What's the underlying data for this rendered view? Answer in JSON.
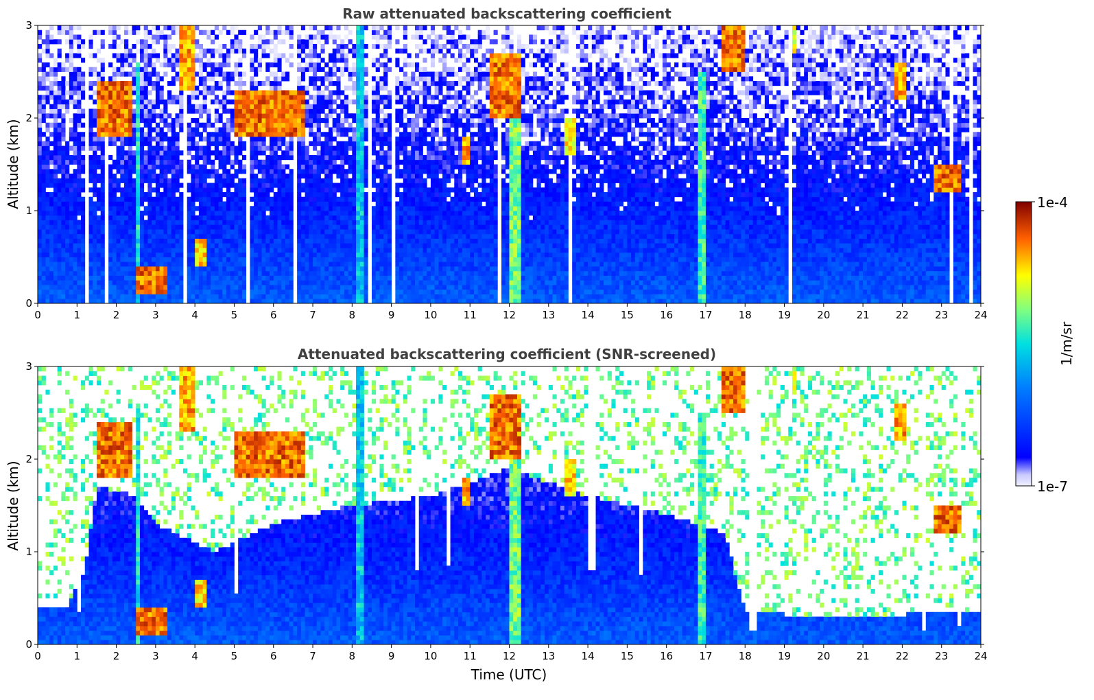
{
  "chart_data": [
    {
      "type": "heatmap",
      "title": "Raw attenuated backscattering coefficient",
      "xlabel": "",
      "ylabel": "Altitude (km)",
      "xlim": [
        0,
        24
      ],
      "ylim": [
        0,
        3
      ],
      "x_ticks": [
        0,
        1,
        2,
        3,
        4,
        5,
        6,
        7,
        8,
        9,
        10,
        11,
        12,
        13,
        14,
        15,
        16,
        17,
        18,
        19,
        20,
        21,
        22,
        23,
        24
      ],
      "y_ticks": [
        0,
        1,
        2,
        3
      ],
      "background_profile": [
        {
          "alt_km": 0.0,
          "level": 0.28
        },
        {
          "alt_km": 0.8,
          "level": 0.18
        },
        {
          "alt_km": 1.5,
          "level": 0.12
        },
        {
          "alt_km": 3.0,
          "level": 0.05
        }
      ],
      "features": [
        {
          "t": [
            1.5,
            2.4
          ],
          "alt": [
            1.8,
            2.4
          ],
          "level": 0.95,
          "label": "cloud"
        },
        {
          "t": [
            2.5,
            2.6
          ],
          "alt": [
            0.0,
            2.6
          ],
          "level": 0.6,
          "label": "precipitation column"
        },
        {
          "t": [
            2.5,
            3.3
          ],
          "alt": [
            0.1,
            0.4
          ],
          "level": 0.95,
          "label": "low cloud"
        },
        {
          "t": [
            3.6,
            4.0
          ],
          "alt": [
            2.3,
            3.0
          ],
          "level": 0.9,
          "label": "cloud"
        },
        {
          "t": [
            4.0,
            4.3
          ],
          "alt": [
            0.4,
            0.7
          ],
          "level": 0.85,
          "label": "low cloud"
        },
        {
          "t": [
            5.0,
            6.8
          ],
          "alt": [
            1.8,
            2.3
          ],
          "level": 0.95,
          "label": "cloud"
        },
        {
          "t": [
            8.1,
            8.3
          ],
          "alt": [
            0.0,
            3.0
          ],
          "level": 0.55,
          "label": "precipitation column"
        },
        {
          "t": [
            10.8,
            11.0
          ],
          "alt": [
            1.5,
            1.8
          ],
          "level": 0.9,
          "label": "cloud"
        },
        {
          "t": [
            11.5,
            12.3
          ],
          "alt": [
            2.0,
            2.7
          ],
          "level": 0.95,
          "label": "cloud"
        },
        {
          "t": [
            12.0,
            12.3
          ],
          "alt": [
            0.0,
            2.7
          ],
          "level": 0.7,
          "label": "precipitation column"
        },
        {
          "t": [
            13.4,
            13.7
          ],
          "alt": [
            1.6,
            2.0
          ],
          "level": 0.85,
          "label": "cloud"
        },
        {
          "t": [
            16.8,
            17.0
          ],
          "alt": [
            0.0,
            2.5
          ],
          "level": 0.65,
          "label": "precipitation column"
        },
        {
          "t": [
            17.4,
            18.0
          ],
          "alt": [
            2.5,
            3.0
          ],
          "level": 0.95,
          "label": "cloud"
        },
        {
          "t": [
            19.2,
            19.3
          ],
          "alt": [
            2.7,
            3.0
          ],
          "level": 0.8,
          "label": "cloud"
        },
        {
          "t": [
            21.8,
            22.1
          ],
          "alt": [
            2.2,
            2.6
          ],
          "level": 0.9,
          "label": "cloud"
        },
        {
          "t": [
            22.8,
            23.5
          ],
          "alt": [
            1.2,
            1.5
          ],
          "level": 0.95,
          "label": "cloud"
        }
      ]
    },
    {
      "type": "heatmap",
      "title": "Attenuated backscattering coefficient (SNR-screened)",
      "xlabel": "Time (UTC)",
      "ylabel": "Altitude (km)",
      "xlim": [
        0,
        24
      ],
      "ylim": [
        0,
        3
      ],
      "x_ticks": [
        0,
        1,
        2,
        3,
        4,
        5,
        6,
        7,
        8,
        9,
        10,
        11,
        12,
        13,
        14,
        15,
        16,
        17,
        18,
        19,
        20,
        21,
        22,
        23,
        24
      ],
      "y_ticks": [
        0,
        1,
        2,
        3
      ],
      "screened_top_km": [
        {
          "t": 0.0,
          "alt": 0.38
        },
        {
          "t": 0.7,
          "alt": 0.38
        },
        {
          "t": 1.2,
          "alt": 0.8
        },
        {
          "t": 1.5,
          "alt": 1.7
        },
        {
          "t": 2.5,
          "alt": 1.6
        },
        {
          "t": 3.0,
          "alt": 1.3
        },
        {
          "t": 4.5,
          "alt": 1.0
        },
        {
          "t": 6.0,
          "alt": 1.3
        },
        {
          "t": 8.0,
          "alt": 1.5
        },
        {
          "t": 10.0,
          "alt": 1.6
        },
        {
          "t": 12.0,
          "alt": 1.9
        },
        {
          "t": 14.0,
          "alt": 1.6
        },
        {
          "t": 16.0,
          "alt": 1.4
        },
        {
          "t": 17.5,
          "alt": 1.2
        },
        {
          "t": 18.0,
          "alt": 0.35
        },
        {
          "t": 20.0,
          "alt": 0.3
        },
        {
          "t": 22.5,
          "alt": 0.33
        },
        {
          "t": 24.0,
          "alt": 0.37
        }
      ]
    }
  ],
  "colorbar": {
    "label": "1/m/sr",
    "min_label": "1e-7",
    "max_label": "1e-4",
    "scale": "log",
    "colormap": "jet"
  }
}
